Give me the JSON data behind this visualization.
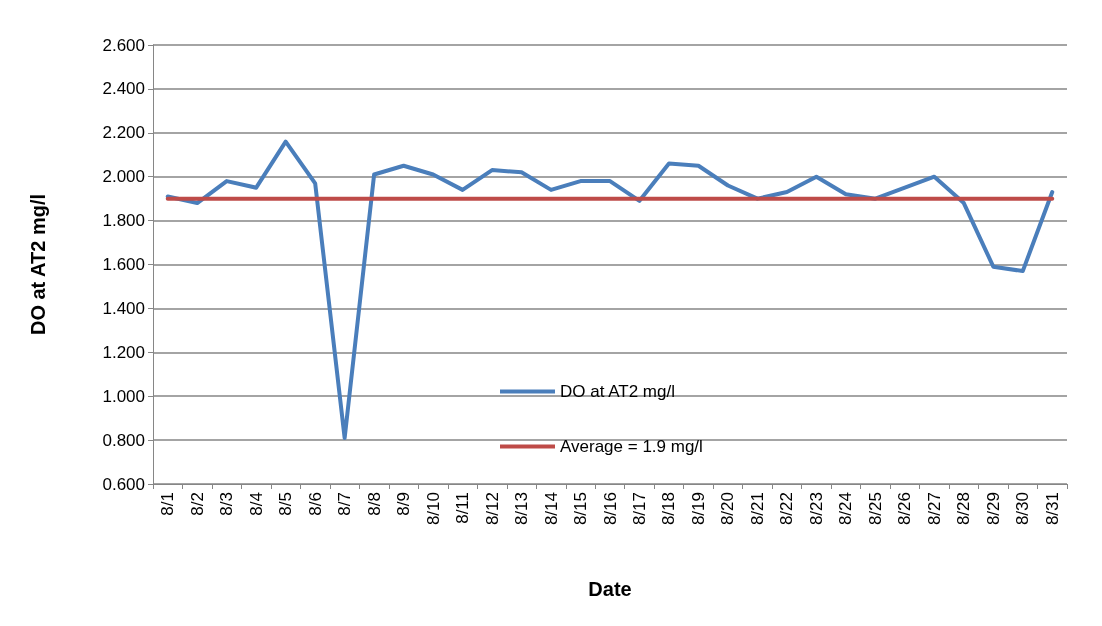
{
  "chart_data": {
    "type": "line",
    "xlabel": "Date",
    "ylabel": "DO at AT2 mg/l",
    "categories": [
      "8/1",
      "8/2",
      "8/3",
      "8/4",
      "8/5",
      "8/6",
      "8/7",
      "8/8",
      "8/9",
      "8/10",
      "8/11",
      "8/12",
      "8/13",
      "8/14",
      "8/15",
      "8/16",
      "8/17",
      "8/18",
      "8/19",
      "8/20",
      "8/21",
      "8/22",
      "8/23",
      "8/24",
      "8/25",
      "8/26",
      "8/27",
      "8/28",
      "8/29",
      "8/30",
      "8/31"
    ],
    "series": [
      {
        "name": "DO at AT2 mg/l",
        "color": "#4a7ebb",
        "values": [
          1.91,
          1.88,
          1.98,
          1.95,
          2.16,
          1.97,
          0.81,
          2.01,
          2.05,
          2.01,
          1.94,
          2.03,
          2.02,
          1.94,
          1.98,
          1.98,
          1.89,
          2.06,
          2.05,
          1.96,
          1.9,
          1.93,
          2.0,
          1.92,
          1.9,
          1.95,
          2.0,
          1.88,
          1.59,
          1.57,
          1.93
        ]
      },
      {
        "name": "Average = 1.9 mg/l",
        "color": "#be4b48",
        "values": [
          1.9,
          1.9,
          1.9,
          1.9,
          1.9,
          1.9,
          1.9,
          1.9,
          1.9,
          1.9,
          1.9,
          1.9,
          1.9,
          1.9,
          1.9,
          1.9,
          1.9,
          1.9,
          1.9,
          1.9,
          1.9,
          1.9,
          1.9,
          1.9,
          1.9,
          1.9,
          1.9,
          1.9,
          1.9,
          1.9,
          1.9
        ]
      }
    ],
    "ylim": [
      0.6,
      2.6
    ],
    "yticks": [
      {
        "value": 0.6,
        "label": "0.600"
      },
      {
        "value": 0.8,
        "label": "0.800"
      },
      {
        "value": 1.0,
        "label": "1.000"
      },
      {
        "value": 1.2,
        "label": "1.200"
      },
      {
        "value": 1.4,
        "label": "1.400"
      },
      {
        "value": 1.6,
        "label": "1.600"
      },
      {
        "value": 1.8,
        "label": "1.800"
      },
      {
        "value": 2.0,
        "label": "2.000"
      },
      {
        "value": 2.2,
        "label": "2.200"
      },
      {
        "value": 2.4,
        "label": "2.400"
      },
      {
        "value": 2.6,
        "label": "2.600"
      }
    ],
    "grid": "y",
    "legend": "bottom",
    "marker": "none",
    "line_style": "solid"
  }
}
